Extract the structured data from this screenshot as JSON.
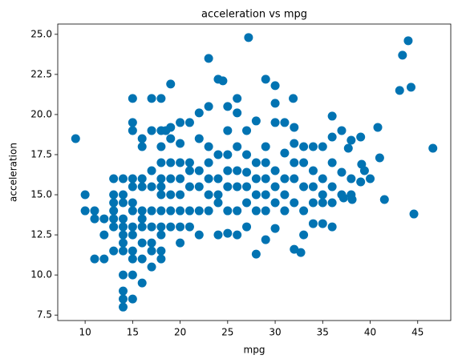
{
  "chart_data": {
    "type": "scatter",
    "title": "acceleration vs mpg",
    "x_label": "mpg",
    "y_label": "acceleration",
    "color": "#0173b2",
    "xlim": [
      7.12,
      48.48
    ],
    "xticks": [
      10,
      15,
      20,
      25,
      30,
      35,
      40,
      45
    ],
    "ylim": [
      7.16,
      25.64
    ],
    "yticks": [
      {
        "value": 7.5,
        "label": "7.5"
      },
      {
        "value": 10,
        "label": "10.0"
      },
      {
        "value": 12.5,
        "label": "12.5"
      },
      {
        "value": 15,
        "label": "15.0"
      },
      {
        "value": 17.5,
        "label": "17.5"
      },
      {
        "value": 20,
        "label": "20.0"
      },
      {
        "value": 22.5,
        "label": "22.5"
      },
      {
        "value": 25,
        "label": "25.0"
      }
    ],
    "grid": false,
    "x": [
      9,
      10,
      10,
      11,
      12,
      13,
      14,
      14,
      14,
      15,
      14,
      15,
      15,
      17,
      18,
      19,
      23,
      24,
      24.5,
      27.2,
      29,
      30,
      31.9,
      26,
      43.1,
      43.4,
      44,
      44.3,
      44.6,
      46.6,
      41.5,
      40.8,
      41,
      28,
      29,
      30,
      32,
      32.7,
      17,
      16,
      18,
      18,
      13,
      14,
      36,
      37,
      38,
      39,
      37.7,
      39.1,
      39.4,
      38.1,
      37.2,
      36,
      34,
      35,
      25,
      23,
      26,
      22,
      20,
      21,
      19,
      18,
      18.5,
      17,
      15,
      15,
      16,
      16,
      13,
      13,
      13,
      13,
      13,
      12,
      12,
      11,
      11,
      14,
      14,
      14,
      14,
      14,
      14,
      14,
      15,
      15,
      15,
      15,
      15,
      15,
      15,
      15,
      16,
      16,
      16,
      16,
      16,
      16,
      16,
      17,
      17,
      17,
      17,
      17,
      17,
      18,
      18,
      18,
      18,
      18,
      18,
      18,
      18,
      19,
      19,
      19,
      19,
      19,
      19,
      20,
      20,
      20,
      20,
      20,
      20,
      20,
      21,
      21,
      21,
      21,
      21,
      22,
      22,
      22,
      22,
      22,
      23,
      23,
      23,
      23,
      23,
      24,
      24,
      24,
      24,
      24,
      25,
      25,
      25,
      25,
      25,
      25,
      26,
      26,
      26,
      26,
      26,
      27,
      27,
      27,
      27,
      27,
      27,
      28,
      28,
      28,
      28,
      28,
      29,
      29,
      29,
      29,
      29,
      30,
      30,
      30,
      30,
      30,
      31,
      31,
      31,
      31,
      31,
      32,
      32,
      32,
      32,
      32,
      33,
      33,
      33,
      33,
      33,
      34,
      34,
      34,
      34,
      35,
      35,
      35,
      35,
      36,
      36,
      36,
      36,
      37,
      37,
      38,
      38,
      39,
      40
    ],
    "y": [
      18.5,
      15,
      14,
      11,
      11,
      11.5,
      8,
      8.5,
      9,
      8.5,
      10,
      10,
      21,
      21,
      21,
      21.9,
      23.5,
      22.2,
      22.1,
      24.8,
      22.2,
      21.8,
      21,
      21,
      21.5,
      23.7,
      24.6,
      21.7,
      13.8,
      17.9,
      14.7,
      19.2,
      17.3,
      11.3,
      12.2,
      12.9,
      11.6,
      11.4,
      10.5,
      9.5,
      11,
      11.5,
      16,
      16,
      19.9,
      19,
      18.4,
      18.6,
      17.9,
      16.9,
      16.5,
      14.7,
      14.8,
      13,
      13.2,
      13.2,
      20.5,
      20.5,
      20.1,
      20.1,
      19.5,
      19.5,
      19.2,
      19,
      19,
      19,
      19,
      19.5,
      18.5,
      18,
      15,
      14.5,
      14,
      13.5,
      13,
      12.5,
      13.5,
      13.5,
      14,
      12.5,
      12,
      11.5,
      13,
      13.5,
      14.5,
      15,
      16,
      15.5,
      14.5,
      14,
      13,
      12.5,
      11.5,
      11,
      13,
      13.5,
      14,
      15.5,
      16,
      12,
      11,
      11.5,
      12,
      13,
      14,
      15.5,
      16.5,
      12.5,
      13,
      14,
      15,
      15.5,
      16,
      17,
      18,
      13,
      14,
      15,
      16,
      17,
      18.5,
      12,
      13,
      14,
      15,
      16,
      17,
      18.2,
      13,
      14,
      15.5,
      16.5,
      17,
      12.5,
      14,
      15.5,
      16.5,
      18.5,
      14,
      15,
      16,
      17,
      18,
      12.5,
      14.5,
      15,
      16,
      17.5,
      12.6,
      14,
      15.5,
      16.5,
      17.5,
      19,
      12.5,
      14,
      15.5,
      16.5,
      18,
      13,
      14.5,
      15.5,
      16.4,
      17.5,
      19,
      14,
      15,
      16,
      17,
      19.6,
      14,
      15,
      16,
      17,
      18,
      14.5,
      15.5,
      16.5,
      19.5,
      20.7,
      14,
      15,
      16,
      17.6,
      19.5,
      14.5,
      16,
      17,
      18.2,
      19.2,
      12.5,
      14,
      15.5,
      17,
      18,
      14.5,
      15.5,
      16.5,
      18,
      14.5,
      15,
      16,
      18,
      14.5,
      15.5,
      17,
      18.6,
      15,
      16.4,
      16,
      15,
      15.8,
      16
    ]
  }
}
